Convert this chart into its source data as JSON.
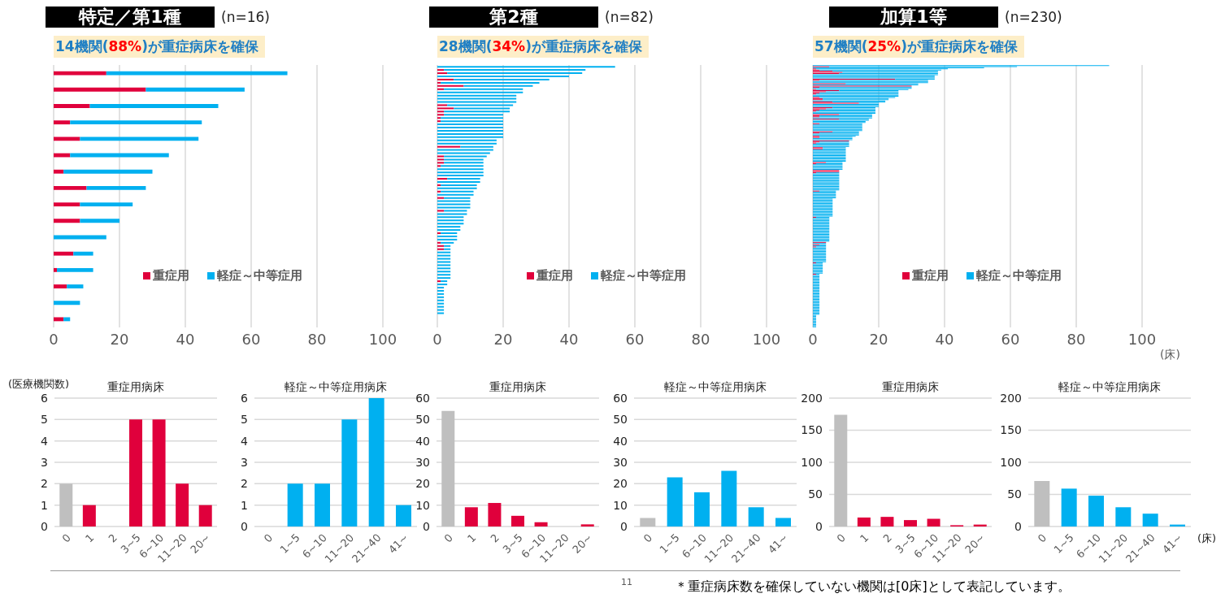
{
  "chart_data": [
    {
      "type": "bar",
      "orientation": "horizontal",
      "stacked": true,
      "title": "特定／第1種",
      "subtitle": "(n=16)",
      "annotations": [
        "14機関(88%)が重症病床を確保"
      ],
      "categories": [
        null,
        null,
        null,
        null,
        null,
        null,
        null,
        null,
        null,
        null,
        null,
        null,
        null,
        null,
        null,
        null
      ],
      "series": [
        {
          "name": "重症用",
          "color": "#e0003c",
          "values": [
            16,
            28,
            11,
            5,
            8,
            5,
            3,
            10,
            8,
            8,
            0,
            6,
            1,
            4,
            0,
            3
          ]
        },
        {
          "name": "軽症～中等症用",
          "color": "#00b0f0",
          "values": [
            55,
            30,
            39,
            40,
            36,
            30,
            27,
            18,
            16,
            12,
            16,
            6,
            11,
            5,
            8,
            2
          ]
        }
      ],
      "xlim": [
        0,
        100
      ],
      "xticks": [
        0,
        20,
        40,
        60,
        80,
        100
      ],
      "grid": "x",
      "legend": "bottom right"
    },
    {
      "type": "bar",
      "orientation": "horizontal",
      "stacked": true,
      "title": "第2種",
      "subtitle": "(n=82)",
      "annotations": [
        "28機関(34%)が重症病床を確保"
      ],
      "categories": [
        null,
        null,
        null,
        null,
        null,
        null,
        null,
        null,
        null,
        null,
        null,
        null,
        null,
        null,
        null,
        null,
        null,
        null,
        null,
        null,
        null,
        null,
        null,
        null,
        null,
        null,
        null,
        null,
        null,
        null,
        null,
        null,
        null,
        null,
        null,
        null,
        null,
        null,
        null,
        null,
        null,
        null,
        null,
        null,
        null,
        null,
        null,
        null,
        null,
        null,
        null,
        null,
        null,
        null,
        null,
        null,
        null,
        null,
        null,
        null,
        null,
        null,
        null,
        null,
        null,
        null,
        null,
        null,
        null,
        null,
        null,
        null,
        null,
        null,
        null,
        null,
        null,
        null,
        null,
        null,
        null,
        null
      ],
      "series": [
        {
          "name": "重症用",
          "color": "#e0003c",
          "values": [
            0,
            2,
            3,
            0,
            5,
            1,
            8,
            2,
            0,
            0,
            0,
            0,
            3,
            5,
            2,
            2,
            1,
            1,
            0,
            0,
            0,
            0,
            0,
            0,
            0,
            7,
            0,
            0,
            2,
            2,
            2,
            1,
            0,
            0,
            0,
            3,
            0,
            1,
            0,
            1,
            0,
            2,
            0,
            0,
            0,
            2,
            0,
            0,
            0,
            0,
            0,
            0,
            1,
            0,
            0,
            1,
            2,
            2,
            0,
            0,
            0,
            0,
            0,
            0,
            0,
            0,
            0,
            1,
            0,
            0,
            0,
            0,
            0,
            0,
            0,
            0,
            0,
            0,
            0,
            0,
            0,
            0
          ]
        },
        {
          "name": "軽症～中等症用",
          "color": "#00b0f0",
          "values": [
            54,
            43,
            41,
            40,
            29,
            30,
            21,
            24,
            26,
            24,
            24,
            24,
            20,
            17,
            20,
            18,
            19,
            19,
            20,
            20,
            20,
            20,
            20,
            18,
            18,
            10,
            17,
            16,
            13,
            12,
            12,
            13,
            14,
            14,
            14,
            10,
            13,
            11,
            12,
            10,
            11,
            8,
            10,
            10,
            10,
            7,
            9,
            8,
            8,
            8,
            7,
            7,
            5,
            6,
            6,
            4,
            2,
            2,
            4,
            4,
            4,
            4,
            4,
            4,
            4,
            4,
            4,
            2,
            3,
            2,
            2,
            2,
            2,
            2,
            2,
            2,
            2,
            2,
            0,
            0,
            0,
            0
          ]
        }
      ],
      "xlim": [
        0,
        100
      ],
      "xticks": [
        0,
        20,
        40,
        60,
        80,
        100
      ],
      "grid": "x",
      "legend": "bottom right"
    },
    {
      "type": "bar",
      "orientation": "horizontal",
      "stacked": true,
      "title": "加算1等",
      "subtitle": "(n=230)",
      "annotations": [
        "57機関(25%)が重症病床を確保"
      ],
      "xlabel": "(床)",
      "categories": [
        null,
        null,
        null,
        null,
        null,
        null,
        null,
        null,
        null,
        null,
        null,
        null,
        null,
        null,
        null,
        null,
        null,
        null,
        null,
        null,
        null,
        null,
        null,
        null,
        null,
        null,
        null,
        null,
        null,
        null,
        null,
        null,
        null,
        null,
        null,
        null,
        null,
        null,
        null,
        null,
        null,
        null,
        null,
        null,
        null,
        null,
        null,
        null,
        null,
        null,
        null,
        null,
        null,
        null,
        null,
        null,
        null,
        null,
        null,
        null,
        null,
        null,
        null,
        null,
        null,
        null,
        null,
        null,
        null,
        null,
        null,
        null,
        null,
        null,
        null,
        null,
        null,
        null,
        null,
        null,
        null,
        null,
        null,
        null,
        null,
        null,
        null,
        null,
        null,
        null,
        null,
        null,
        null,
        null,
        null,
        null,
        null,
        null,
        null,
        null,
        null,
        null,
        null,
        null,
        null,
        null,
        null,
        null,
        null,
        null,
        null,
        null,
        null,
        null,
        null,
        null,
        null,
        null,
        null,
        null,
        null,
        null,
        null,
        null,
        null,
        null,
        null,
        null,
        null,
        null,
        null,
        null,
        null,
        null,
        null,
        null,
        null,
        null,
        null,
        null,
        null,
        null,
        null,
        null,
        null,
        null,
        null,
        null,
        null,
        null,
        null,
        null,
        null,
        null,
        null,
        null,
        null,
        null,
        null,
        null,
        null,
        null,
        null,
        null,
        null,
        null,
        null,
        null,
        null,
        null,
        null,
        null,
        null,
        null,
        null,
        null,
        null,
        null,
        null,
        null,
        null,
        null,
        null,
        null,
        null,
        null,
        null,
        null,
        null,
        null,
        null,
        null,
        null,
        null,
        null,
        null,
        null,
        null,
        null,
        null,
        null,
        null,
        null,
        null,
        null,
        null,
        null,
        null,
        null,
        null,
        null,
        null,
        null,
        null,
        null,
        null,
        null,
        null,
        null,
        null,
        null,
        null,
        null,
        null,
        null,
        null,
        null,
        null,
        null,
        null
      ],
      "series": [
        {
          "name": "重症用",
          "color": "#e0003c",
          "values": [
            0,
            5,
            0,
            1,
            2,
            6,
            9,
            8,
            0,
            0,
            0,
            0,
            25,
            2,
            0,
            0,
            10,
            0,
            30,
            2,
            0,
            1,
            8,
            4,
            2,
            1,
            0,
            0,
            2,
            3,
            3,
            0,
            6,
            14,
            0,
            0,
            0,
            6,
            4,
            2,
            1,
            0,
            0,
            8,
            2,
            2,
            0,
            8,
            0,
            0,
            0,
            2,
            0,
            0,
            0,
            0,
            0,
            0,
            6,
            2,
            0,
            0,
            2,
            2,
            0,
            0,
            11,
            2,
            1,
            0,
            0,
            0,
            3,
            3,
            0,
            0,
            0,
            0,
            0,
            0,
            0,
            0,
            0,
            0,
            0,
            4,
            1,
            0,
            0,
            0,
            0,
            0,
            8,
            8,
            1,
            0,
            0,
            0,
            0,
            0,
            0,
            0,
            0,
            0,
            0,
            0,
            0,
            0,
            0,
            0,
            2,
            0,
            0,
            0,
            0,
            0,
            0,
            0,
            0,
            0,
            0,
            0,
            0,
            0,
            0,
            0,
            0,
            0,
            0,
            0,
            0,
            0,
            0,
            1,
            0,
            0,
            0,
            0,
            0,
            0,
            0,
            0,
            0,
            0,
            0,
            0,
            0,
            0,
            0,
            0,
            0,
            0,
            0,
            0,
            0,
            4,
            0,
            2,
            0,
            1,
            0,
            0,
            0,
            0,
            0,
            0,
            0,
            0,
            0,
            0,
            0,
            0,
            0,
            1,
            0,
            0,
            0,
            0,
            0,
            0,
            0,
            0,
            0,
            1,
            0,
            0,
            0,
            0,
            0,
            0,
            0,
            0,
            0,
            0,
            0,
            0,
            0,
            0,
            0,
            0,
            0,
            0,
            0,
            0,
            0,
            0,
            0,
            0,
            0,
            0,
            0,
            0,
            0,
            0,
            0,
            0,
            0,
            0,
            0,
            0,
            0,
            0,
            0,
            0,
            0,
            0,
            0,
            0,
            0,
            0
          ]
        },
        {
          "name": "軽症～中等症用",
          "color": "#00b0f0",
          "values": [
            90,
            57,
            52,
            40,
            37,
            32,
            29,
            30,
            38,
            37,
            37,
            37,
            12,
            33,
            35,
            35,
            22,
            32,
            0,
            28,
            30,
            28,
            18,
            22,
            24,
            25,
            26,
            26,
            23,
            20,
            20,
            22,
            16,
            6,
            20,
            20,
            20,
            13,
            15,
            17,
            18,
            19,
            19,
            10,
            16,
            16,
            18,
            9,
            17,
            16,
            16,
            13,
            15,
            15,
            15,
            15,
            15,
            15,
            8,
            12,
            14,
            14,
            11,
            10,
            12,
            12,
            0,
            9,
            10,
            11,
            11,
            11,
            7,
            7,
            10,
            10,
            10,
            10,
            10,
            10,
            10,
            10,
            10,
            10,
            10,
            5,
            8,
            9,
            9,
            9,
            9,
            9,
            0,
            0,
            7,
            8,
            8,
            8,
            8,
            8,
            8,
            8,
            8,
            8,
            8,
            8,
            8,
            8,
            8,
            8,
            5,
            7,
            7,
            7,
            7,
            7,
            7,
            6,
            6,
            6,
            6,
            6,
            6,
            6,
            6,
            6,
            6,
            6,
            6,
            6,
            6,
            6,
            6,
            4,
            5,
            5,
            5,
            5,
            5,
            5,
            5,
            5,
            5,
            5,
            5,
            5,
            5,
            5,
            5,
            5,
            5,
            5,
            5,
            5,
            5,
            0,
            4,
            2,
            4,
            3,
            4,
            4,
            4,
            4,
            4,
            4,
            4,
            4,
            4,
            4,
            4,
            4,
            4,
            2,
            3,
            3,
            3,
            3,
            3,
            3,
            3,
            3,
            3,
            1,
            2,
            2,
            2,
            2,
            2,
            2,
            2,
            2,
            2,
            2,
            2,
            2,
            2,
            2,
            2,
            2,
            2,
            2,
            2,
            2,
            2,
            2,
            2,
            2,
            2,
            2,
            2,
            2,
            2,
            2,
            2,
            2,
            2,
            2,
            2,
            1,
            1,
            1,
            1,
            1,
            1,
            1,
            1,
            1,
            1,
            1
          ]
        }
      ],
      "xlim": [
        0,
        100
      ],
      "xticks": [
        0,
        20,
        40,
        60,
        80,
        100
      ],
      "grid": "x",
      "legend": "bottom right"
    },
    {
      "type": "bar",
      "title": "重症用病床",
      "ylabel": "(医療機関数)",
      "categories": [
        "0",
        "1",
        "2",
        "3~5",
        "6~10",
        "11~20",
        "20~"
      ],
      "values": [
        2,
        1,
        0,
        5,
        5,
        2,
        1
      ],
      "colors": [
        "#bfbfbf",
        "#e0003c",
        "#e0003c",
        "#e0003c",
        "#e0003c",
        "#e0003c",
        "#e0003c"
      ],
      "ylim": [
        0,
        6
      ],
      "yticks": [
        0,
        1,
        2,
        3,
        4,
        5,
        6
      ],
      "grid": "y"
    },
    {
      "type": "bar",
      "title": "軽症～中等症用病床",
      "categories": [
        "0",
        "1~5",
        "6~10",
        "11~20",
        "21~40",
        "41~"
      ],
      "values": [
        0,
        2,
        2,
        5,
        6,
        1
      ],
      "colors": [
        "#bfbfbf",
        "#00b0f0",
        "#00b0f0",
        "#00b0f0",
        "#00b0f0",
        "#00b0f0"
      ],
      "ylim": [
        0,
        6
      ],
      "yticks": [
        0,
        1,
        2,
        3,
        4,
        5,
        6
      ],
      "grid": "y"
    },
    {
      "type": "bar",
      "title": "重症用病床",
      "categories": [
        "0",
        "1",
        "2",
        "3~5",
        "6~10",
        "11~20",
        "20~"
      ],
      "values": [
        54,
        9,
        11,
        5,
        2,
        0,
        1
      ],
      "colors": [
        "#bfbfbf",
        "#e0003c",
        "#e0003c",
        "#e0003c",
        "#e0003c",
        "#e0003c",
        "#e0003c"
      ],
      "ylim": [
        0,
        60
      ],
      "yticks": [
        0,
        10,
        20,
        30,
        40,
        50,
        60
      ],
      "grid": "y"
    },
    {
      "type": "bar",
      "title": "軽症～中等症用病床",
      "categories": [
        "0",
        "1~5",
        "6~10",
        "11~20",
        "21~40",
        "41~"
      ],
      "values": [
        4,
        23,
        16,
        26,
        9,
        4
      ],
      "colors": [
        "#bfbfbf",
        "#00b0f0",
        "#00b0f0",
        "#00b0f0",
        "#00b0f0",
        "#00b0f0"
      ],
      "ylim": [
        0,
        60
      ],
      "yticks": [
        0,
        10,
        20,
        30,
        40,
        50,
        60
      ],
      "grid": "y"
    },
    {
      "type": "bar",
      "title": "重症用病床",
      "categories": [
        "0",
        "1",
        "2",
        "3~5",
        "6~10",
        "11~20",
        "20~"
      ],
      "values": [
        174,
        14,
        15,
        10,
        12,
        2,
        3
      ],
      "colors": [
        "#bfbfbf",
        "#e0003c",
        "#e0003c",
        "#e0003c",
        "#e0003c",
        "#e0003c",
        "#e0003c"
      ],
      "ylim": [
        0,
        200
      ],
      "yticks": [
        0,
        50,
        100,
        150,
        200
      ],
      "grid": "y"
    },
    {
      "type": "bar",
      "title": "軽症～中等症用病床",
      "xlabel": "(床)",
      "annotations": [
        "11",
        "＊重症病床数を確保していない機関は[0床]として表記しています。"
      ],
      "categories": [
        "0",
        "1~5",
        "6~10",
        "11~20",
        "21~40",
        "41~"
      ],
      "values": [
        71,
        59,
        48,
        30,
        20,
        3
      ],
      "colors": [
        "#bfbfbf",
        "#00b0f0",
        "#00b0f0",
        "#00b0f0",
        "#00b0f0",
        "#00b0f0"
      ],
      "ylim": [
        0,
        200
      ],
      "yticks": [
        0,
        50,
        100,
        150,
        200
      ],
      "grid": "y"
    }
  ]
}
